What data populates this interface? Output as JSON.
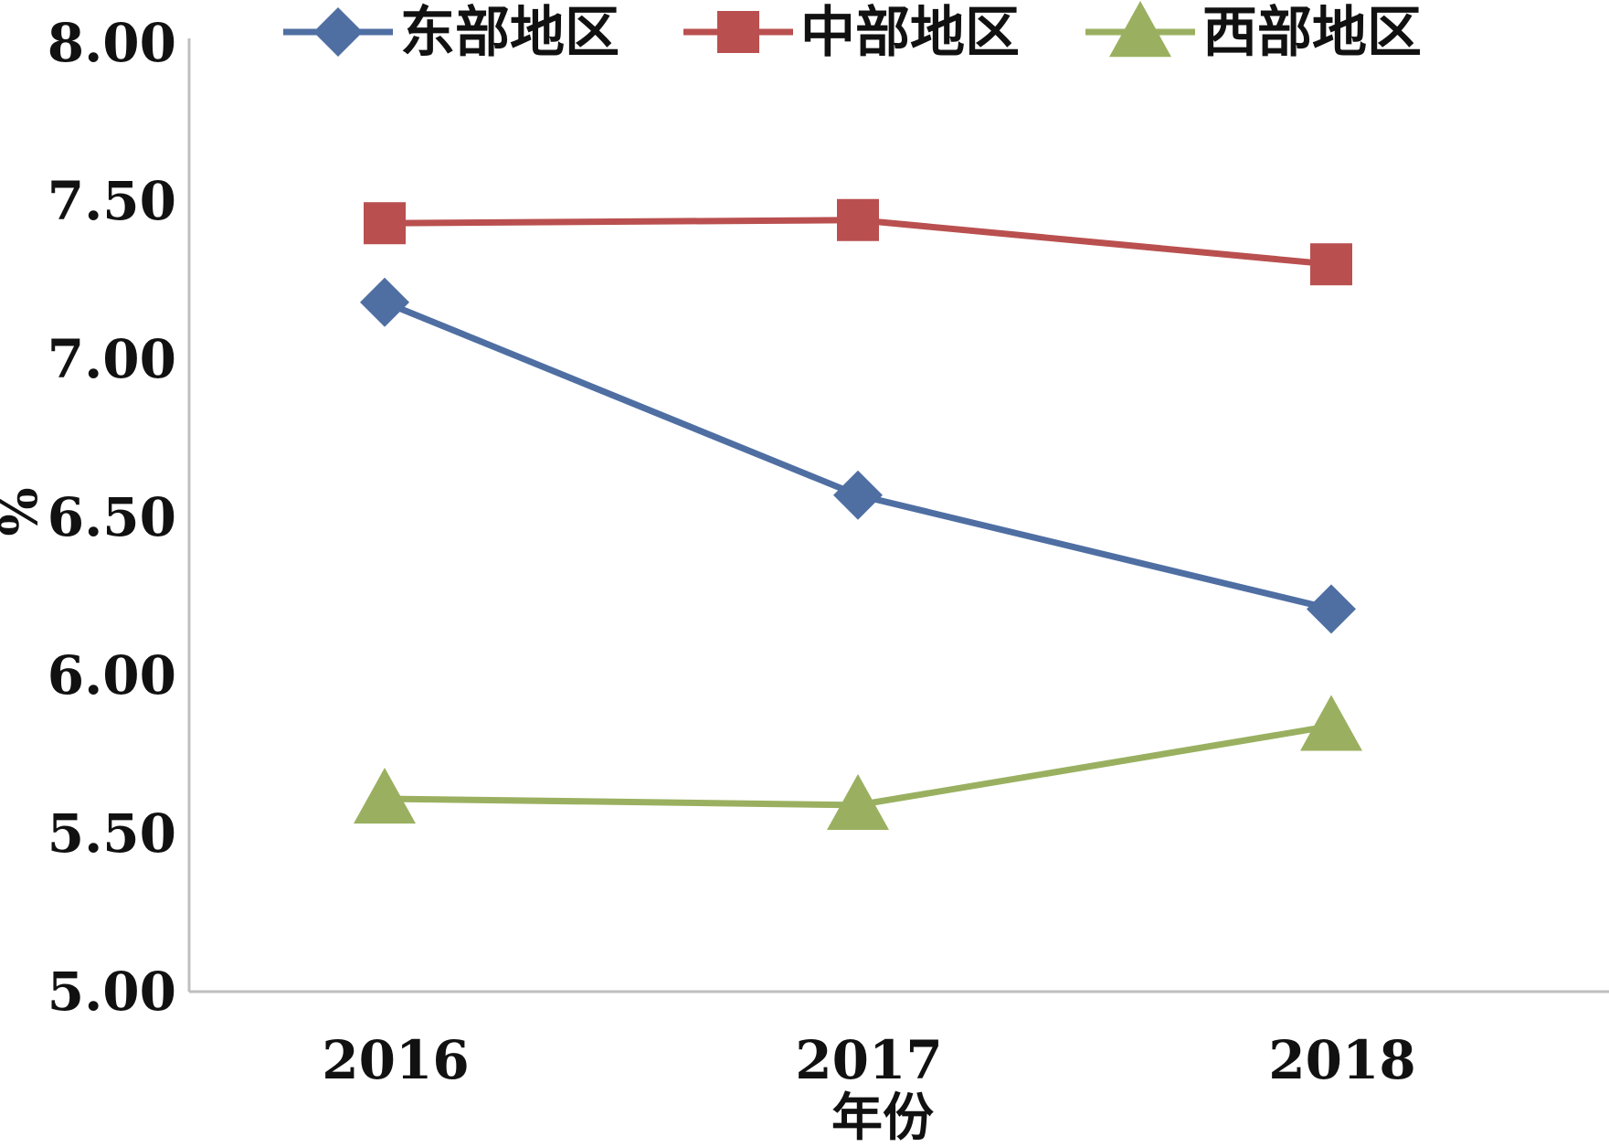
{
  "chart_data": {
    "type": "line",
    "categories": [
      "2016",
      "2017",
      "2018"
    ],
    "series": [
      {
        "name": "东部地区",
        "marker": "diamond",
        "color": "#4F6FA3",
        "values": [
          7.18,
          6.57,
          6.21
        ]
      },
      {
        "name": "中部地区",
        "marker": "square",
        "color": "#B9504F",
        "values": [
          7.43,
          7.44,
          7.3
        ]
      },
      {
        "name": "西部地区",
        "marker": "triangle",
        "color": "#9AB060",
        "values": [
          5.61,
          5.59,
          5.84
        ]
      }
    ],
    "xlabel": "年份",
    "ylabel": "%",
    "ylim": [
      5.0,
      8.0
    ],
    "yticks": [
      "5.00",
      "5.50",
      "6.00",
      "6.50",
      "7.00",
      "7.50",
      "8.00"
    ],
    "grid": false,
    "legend_position": "top",
    "axis_color": "#BFBFBF"
  }
}
